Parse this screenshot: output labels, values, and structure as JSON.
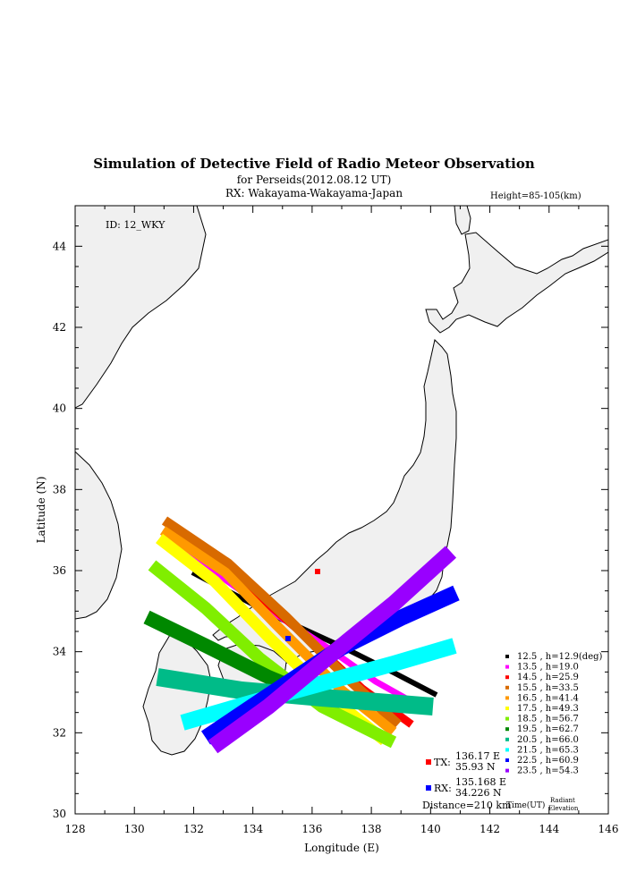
{
  "map": {
    "title": "Simulation of Detective Field of Radio Meteor Observation",
    "subtitle_event": "for Perseids(2012.08.12 UT)",
    "subtitle_rx": "RX: Wakayama-Wakayama-Japan",
    "height_label": "Height=85-105(km)",
    "id_label": "ID: 12_WKY",
    "xlabel": "Longitude (E)",
    "ylabel": "Latitude (N)",
    "x_ticks": [
      "128",
      "130",
      "132",
      "134",
      "136",
      "138",
      "140",
      "142",
      "144",
      "146"
    ],
    "y_ticks": [
      "30",
      "32",
      "34",
      "36",
      "38",
      "40",
      "42",
      "44"
    ],
    "xlim": [
      128,
      146
    ],
    "ylim": [
      30,
      45
    ],
    "land_color": "#f0f0f0"
  },
  "stations": {
    "tx": {
      "label": "TX:",
      "lon": 136.17,
      "lat": 35.93,
      "lon_text": "136.17 E",
      "lat_text": "35.93 N",
      "color": "#ff0000"
    },
    "rx": {
      "label": "RX:",
      "lon": 135.168,
      "lat": 34.226,
      "lon_text": "135.168 E",
      "lat_text": "34.226 N",
      "color": "#0000ff"
    },
    "distance": "Distance=210 km"
  },
  "legend": {
    "time_header": "Time(UT)",
    "elev_header_1": "Radiant",
    "elev_header_2": "Elevation",
    "entries": [
      {
        "text": "12.5 ,  h=12.9(deg)",
        "color": "#000000"
      },
      {
        "text": "13.5 ,  h=19.0",
        "color": "#ff00ff"
      },
      {
        "text": "14.5 ,  h=25.9",
        "color": "#ff0000"
      },
      {
        "text": "15.5 ,  h=33.5",
        "color": "#d86a00"
      },
      {
        "text": "16.5 ,  h=41.4",
        "color": "#ff9900"
      },
      {
        "text": "17.5 ,  h=49.3",
        "color": "#ffff00"
      },
      {
        "text": "18.5 ,  h=56.7",
        "color": "#80ee00"
      },
      {
        "text": "19.5 ,  h=62.7",
        "color": "#008800"
      },
      {
        "text": "20.5 ,  h=66.0",
        "color": "#00bb88"
      },
      {
        "text": "21.5 ,  h=65.3",
        "color": "#00ffff"
      },
      {
        "text": "22.5 ,  h=60.9",
        "color": "#0000ff"
      },
      {
        "text": "23.5 ,  h=54.3",
        "color": "#9900ff"
      }
    ]
  }
}
